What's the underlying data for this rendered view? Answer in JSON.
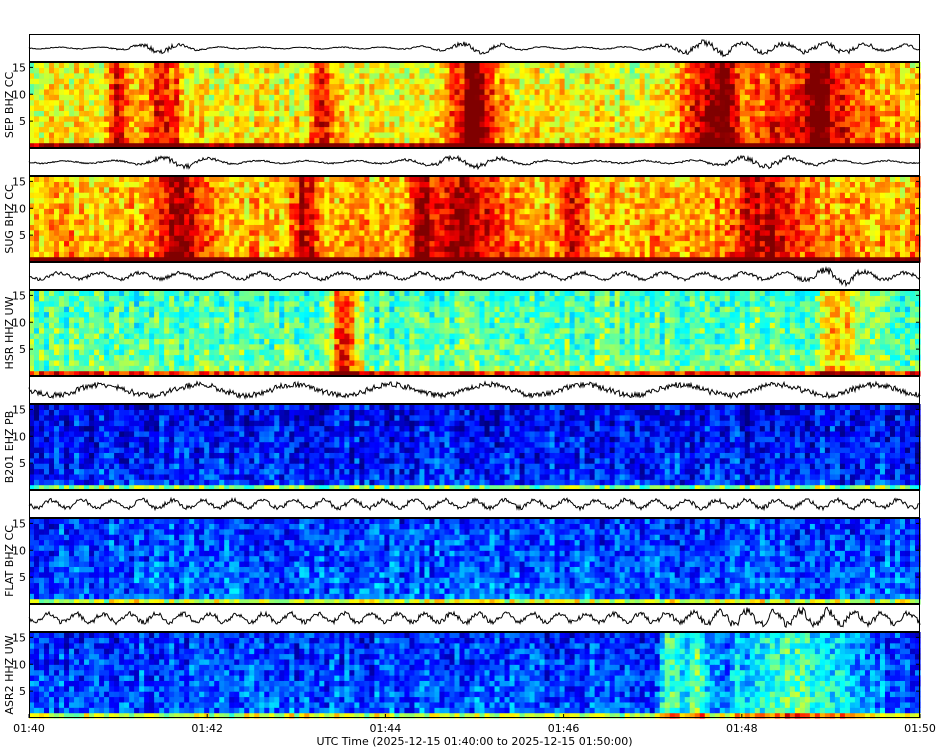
{
  "chart_data": {
    "type": "heatmap",
    "x_axis": {
      "label": "UTC Time (2025-12-15 01:40:00 to 2025-12-15 01:50:00)",
      "start": "01:40",
      "end": "01:50",
      "ticks": [
        "01:40",
        "01:42",
        "01:44",
        "01:46",
        "01:48",
        "01:50"
      ]
    },
    "y_ticks": [
      "5",
      "10",
      "15"
    ],
    "ylim": [
      0,
      16
    ],
    "colormap": [
      "#00007f",
      "#0000ff",
      "#007fff",
      "#00ffff",
      "#7fff7f",
      "#ffff00"
    ],
    "stations": [
      {
        "label": "SEP BHZ CC",
        "intensity": 0.6,
        "trace_amp": 0.12,
        "trace_period": 0.12,
        "bursts": [
          [
            1.5,
            0.35
          ],
          [
            5.0,
            0.45
          ],
          [
            7.6,
            0.45
          ],
          [
            8.8,
            1.3
          ]
        ],
        "stripes": [
          1.0,
          3.3,
          5.0,
          7.8,
          8.85
        ]
      },
      {
        "label": "SUG BHZ CC",
        "intensity": 0.68,
        "trace_amp": 0.18,
        "trace_period": 0.1,
        "bursts": [
          [
            1.7,
            0.4
          ],
          [
            4.9,
            0.6
          ],
          [
            8.3,
            0.6
          ]
        ],
        "stripes": [
          3.1,
          4.4,
          6.1
        ]
      },
      {
        "label": "HSR HHZ UW",
        "intensity": 0.44,
        "trace_amp": 0.45,
        "trace_period": 0.12,
        "bursts": [
          [
            9.1,
            0.3
          ]
        ],
        "stripes": [
          3.5,
          3.6
        ]
      },
      {
        "label": "B201 EHZ PB",
        "intensity": 0.12,
        "trace_amp": 0.75,
        "trace_period": 0.05,
        "bursts": [],
        "stripes": []
      },
      {
        "label": "FLAT BHZ CC",
        "intensity": 0.18,
        "trace_amp": 0.55,
        "trace_period": 0.16,
        "bursts": [],
        "stripes": []
      },
      {
        "label": "ASR2 HHZ UW",
        "intensity": 0.17,
        "trace_amp": 0.6,
        "trace_period": 0.18,
        "bursts": [
          [
            8.6,
            1.0
          ]
        ],
        "stripes": [
          7.2,
          7.5
        ]
      }
    ]
  }
}
